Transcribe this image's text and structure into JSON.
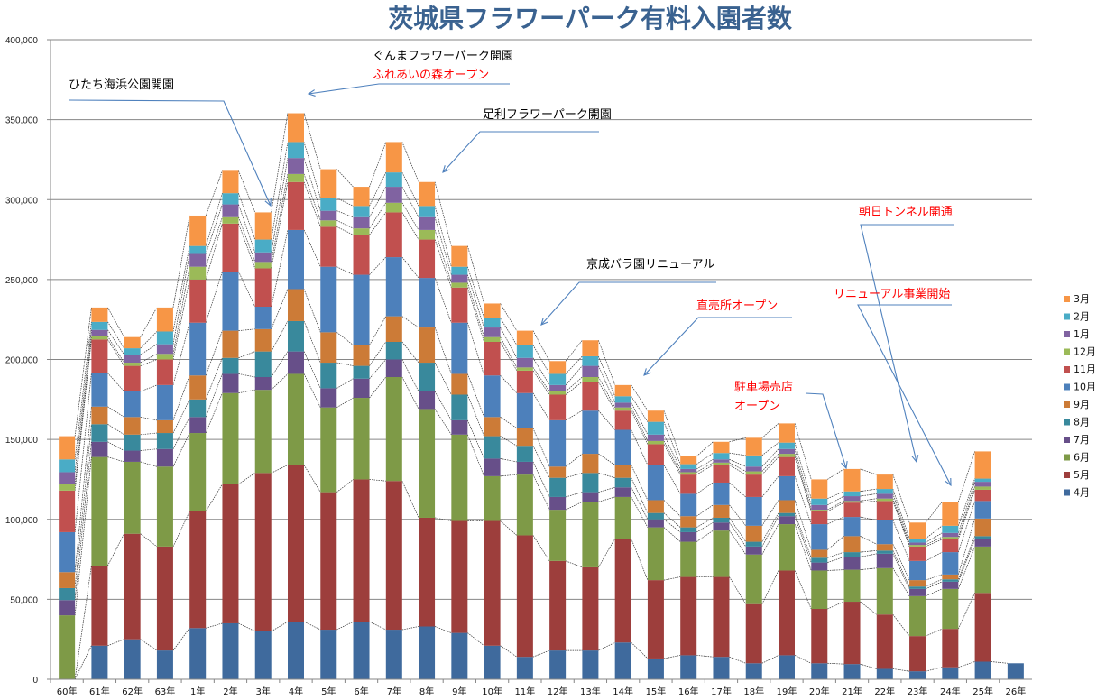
{
  "chart_data": {
    "type": "bar",
    "stacked": true,
    "title": "茨城県フラワーパーク有料入園者数",
    "xlabel": "",
    "ylabel": "",
    "ylim": [
      0,
      400000
    ],
    "yticks": [
      0,
      50000,
      100000,
      150000,
      200000,
      250000,
      300000,
      350000,
      400000
    ],
    "ytick_labels": [
      "0",
      "50,000",
      "100,000",
      "150,000",
      "200,000",
      "250,000",
      "300,000",
      "350,000",
      "400,000"
    ],
    "grid": true,
    "legend_position": "right",
    "categories": [
      "60年",
      "61年",
      "62年",
      "63年",
      "1年",
      "2年",
      "3年",
      "4年",
      "5年",
      "6年",
      "7年",
      "8年",
      "9年",
      "10年",
      "11年",
      "12年",
      "13年",
      "14年",
      "15年",
      "16年",
      "17年",
      "18年",
      "19年",
      "20年",
      "21年",
      "22年",
      "23年",
      "24年",
      "25年",
      "26年"
    ],
    "series": [
      {
        "name": "4月",
        "color": "#3f6a9d",
        "values": [
          0,
          21000,
          25000,
          18000,
          32000,
          35000,
          30000,
          36000,
          31000,
          36000,
          31000,
          33000,
          29000,
          21000,
          14000,
          18000,
          18000,
          23000,
          13000,
          15000,
          14000,
          10000,
          15000,
          10000,
          9500,
          6500,
          5000,
          7500,
          11000,
          10000
        ]
      },
      {
        "name": "5月",
        "color": "#9d3e3c",
        "values": [
          0,
          50000,
          66000,
          65000,
          73000,
          87000,
          99000,
          98000,
          86000,
          89000,
          93000,
          68000,
          70000,
          78000,
          76000,
          56000,
          52000,
          65000,
          49000,
          49000,
          50000,
          37000,
          53000,
          34000,
          39000,
          34000,
          22000,
          24000,
          43000,
          0
        ]
      },
      {
        "name": "6月",
        "color": "#7e9a47",
        "values": [
          40000,
          68000,
          45000,
          50000,
          49000,
          57000,
          52000,
          57000,
          53000,
          51000,
          65000,
          68000,
          54000,
          28000,
          38000,
          32000,
          41000,
          26000,
          33000,
          22000,
          29000,
          31000,
          29000,
          24000,
          20000,
          29000,
          25000,
          25000,
          29000,
          0
        ]
      },
      {
        "name": "7月",
        "color": "#674f89",
        "values": [
          9500,
          9500,
          7000,
          11000,
          10000,
          12000,
          8000,
          14000,
          12000,
          12000,
          11000,
          11000,
          9000,
          11000,
          8000,
          8000,
          6000,
          6000,
          5000,
          6000,
          5000,
          5000,
          5000,
          5000,
          8000,
          9000,
          4500,
          4500,
          4500,
          0
        ]
      },
      {
        "name": "8月",
        "color": "#39899c",
        "values": [
          7500,
          11000,
          10000,
          10000,
          11000,
          10000,
          16000,
          19000,
          16000,
          8000,
          11000,
          18000,
          16000,
          14000,
          10000,
          12000,
          12000,
          6000,
          4000,
          3000,
          3000,
          3000,
          2000,
          3000,
          3000,
          2000,
          1500,
          1500,
          2000,
          0
        ]
      },
      {
        "name": "9月",
        "color": "#cc7b37",
        "values": [
          10000,
          11000,
          11000,
          8000,
          15000,
          17000,
          14000,
          20000,
          19000,
          13000,
          16000,
          22000,
          13000,
          12000,
          11000,
          7000,
          12000,
          8000,
          8000,
          7000,
          8000,
          10000,
          8000,
          5000,
          10000,
          4000,
          4000,
          3000,
          11000,
          0
        ]
      },
      {
        "name": "10月",
        "color": "#4d80bb",
        "values": [
          25000,
          21000,
          16000,
          22000,
          33000,
          37000,
          14000,
          37000,
          41000,
          44000,
          37000,
          31000,
          32000,
          26000,
          22000,
          29000,
          27000,
          22000,
          22000,
          14000,
          14000,
          18000,
          15000,
          16000,
          12000,
          15000,
          12000,
          14000,
          11000,
          0
        ]
      },
      {
        "name": "11月",
        "color": "#c1504f",
        "values": [
          26000,
          21000,
          16000,
          16000,
          27000,
          30000,
          24000,
          30000,
          25000,
          25000,
          28000,
          24000,
          22000,
          21000,
          14000,
          16000,
          18000,
          12000,
          13000,
          12000,
          11000,
          14000,
          12000,
          8000,
          9000,
          12000,
          9000,
          8000,
          7000,
          0
        ]
      },
      {
        "name": "12月",
        "color": "#9bba58",
        "values": [
          4000,
          2000,
          2000,
          3500,
          8000,
          4000,
          4000,
          5000,
          4000,
          4000,
          6000,
          6000,
          3000,
          3000,
          2000,
          2000,
          3000,
          2000,
          2000,
          1500,
          1500,
          2000,
          2000,
          1000,
          1000,
          1500,
          1000,
          1500,
          2000,
          0
        ]
      },
      {
        "name": "1月",
        "color": "#8063a1",
        "values": [
          7500,
          4000,
          5000,
          6000,
          8000,
          8000,
          6000,
          10000,
          6000,
          7000,
          10000,
          8000,
          5000,
          6000,
          6000,
          4000,
          7000,
          3000,
          4000,
          2000,
          2000,
          3000,
          3000,
          3000,
          3000,
          3000,
          1500,
          2500,
          3000,
          0
        ]
      },
      {
        "name": "2月",
        "color": "#4aacc6",
        "values": [
          8000,
          5000,
          4000,
          8000,
          5000,
          7000,
          8000,
          10000,
          8000,
          7000,
          9000,
          7000,
          5000,
          6000,
          8000,
          7000,
          6000,
          4000,
          8000,
          3000,
          4000,
          7000,
          4000,
          4000,
          3000,
          3000,
          2500,
          4500,
          2000,
          0
        ]
      },
      {
        "name": "3月",
        "color": "#f79646",
        "values": [
          14500,
          9000,
          7000,
          15000,
          19000,
          14000,
          17000,
          18000,
          18000,
          12000,
          19000,
          15000,
          13000,
          9000,
          9000,
          8000,
          10000,
          7000,
          7000,
          5000,
          7000,
          11000,
          12000,
          12000,
          14000,
          9000,
          10000,
          15000,
          17000,
          0
        ]
      }
    ],
    "annotations": [
      {
        "text": "ひたち海浜公園開園",
        "color": "#000000",
        "points_to": "3年"
      },
      {
        "text": "ぐんまフラワーパーク開園",
        "color": "#000000",
        "points_to": "4年"
      },
      {
        "text": "ふれあいの森オープン",
        "color": "#ff0000",
        "points_to": "4年"
      },
      {
        "text": "足利フラワーパーク開園",
        "color": "#000000",
        "points_to": "8年"
      },
      {
        "text": "京成バラ園リニューアル",
        "color": "#000000",
        "points_to": "11年"
      },
      {
        "text": "直売所オープン",
        "color": "#ff0000",
        "points_to": "14年"
      },
      {
        "text": "駐車場売店",
        "color": "#ff0000",
        "points_to": "21年"
      },
      {
        "text": "オープン",
        "color": "#ff0000",
        "points_to": "21年"
      },
      {
        "text": "朝日トンネル開通",
        "color": "#ff0000",
        "points_to": "24年"
      },
      {
        "text": "リニューアル事業開始",
        "color": "#ff0000",
        "points_to": "23年"
      }
    ]
  }
}
